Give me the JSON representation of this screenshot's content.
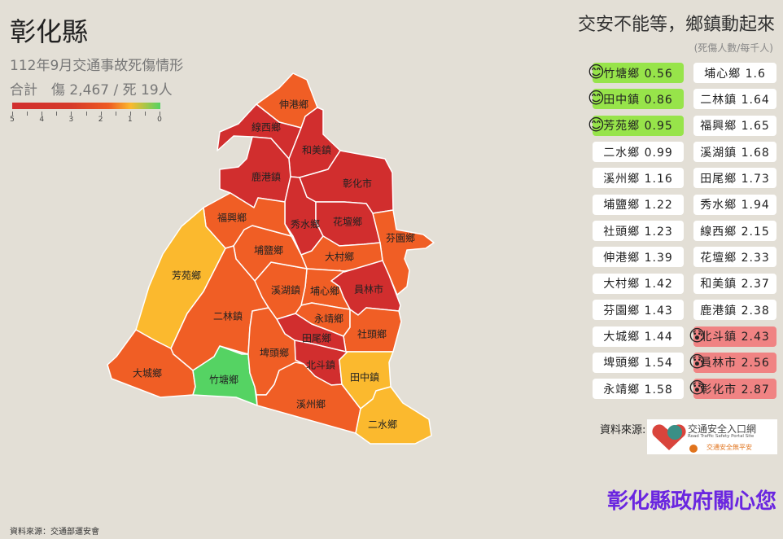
{
  "header": {
    "title": "彰化縣",
    "subtitle": "112年9月交通事故死傷情形",
    "totals": "合計　傷 2,467 / 死 19人"
  },
  "legend": {
    "labels": [
      "5",
      "4",
      "3",
      "2",
      "1",
      "0"
    ]
  },
  "colors": {
    "red": "#d12e2e",
    "orange": "#f05e25",
    "yellow": "#fbb92e",
    "green": "#55d363",
    "good_bg": "#97e44a",
    "bad_bg": "#f08383"
  },
  "map": {
    "regions": [
      {
        "id": "shengang",
        "name": "伸港鄉",
        "color": "#f05e25"
      },
      {
        "id": "xianxi",
        "name": "線西鄉",
        "color": "#d12e2e"
      },
      {
        "id": "hemei",
        "name": "和美鎮",
        "color": "#d12e2e"
      },
      {
        "id": "lukang",
        "name": "鹿港鎮",
        "color": "#d12e2e"
      },
      {
        "id": "changhua",
        "name": "彰化市",
        "color": "#d12e2e"
      },
      {
        "id": "xiushui",
        "name": "秀水鄉",
        "color": "#d12e2e"
      },
      {
        "id": "huatan",
        "name": "花壇鄉",
        "color": "#d12e2e"
      },
      {
        "id": "fenyuan",
        "name": "芬園鄉",
        "color": "#f05e25"
      },
      {
        "id": "dacun",
        "name": "大村鄉",
        "color": "#f05e25"
      },
      {
        "id": "yuanlin",
        "name": "員林市",
        "color": "#d12e2e"
      },
      {
        "id": "puxin",
        "name": "埔心鄉",
        "color": "#f05e25"
      },
      {
        "id": "yongjing",
        "name": "永靖鄉",
        "color": "#f05e25"
      },
      {
        "id": "shetou",
        "name": "社頭鄉",
        "color": "#f05e25"
      },
      {
        "id": "tianwei",
        "name": "田尾鄉",
        "color": "#d12e2e"
      },
      {
        "id": "beidou",
        "name": "北斗鎮",
        "color": "#d12e2e"
      },
      {
        "id": "xihu",
        "name": "溪湖鎮",
        "color": "#f05e25"
      },
      {
        "id": "puyan",
        "name": "埔鹽鄉",
        "color": "#f05e25"
      },
      {
        "id": "fuxing",
        "name": "福興鄉",
        "color": "#f05e25"
      },
      {
        "id": "fangyuan",
        "name": "芳苑鄉",
        "color": "#fbb92e"
      },
      {
        "id": "erlin",
        "name": "二林鎮",
        "color": "#f05e25"
      },
      {
        "id": "dacheng",
        "name": "大城鄉",
        "color": "#f05e25"
      },
      {
        "id": "zhutang",
        "name": "竹塘鄉",
        "color": "#55d363"
      },
      {
        "id": "pitou",
        "name": "埤頭鄉",
        "color": "#f05e25"
      },
      {
        "id": "xizhou",
        "name": "溪州鄉",
        "color": "#f05e25"
      },
      {
        "id": "tianzhong",
        "name": "田中鎮",
        "color": "#fbb92e"
      },
      {
        "id": "ershui",
        "name": "二水鄉",
        "color": "#fbb92e"
      }
    ]
  },
  "ranking": {
    "title": "交安不能等，鄉鎮動起來",
    "unit": "(死傷人數/每千人)",
    "left": [
      {
        "label": "竹塘鄉 0.56",
        "status": "good",
        "emoji": "😊"
      },
      {
        "label": "田中鎮 0.86",
        "status": "good",
        "emoji": "😊"
      },
      {
        "label": "芳苑鄉 0.95",
        "status": "good",
        "emoji": "😊"
      },
      {
        "label": "二水鄉 0.99"
      },
      {
        "label": "溪州鄉 1.16"
      },
      {
        "label": "埔鹽鄉 1.22"
      },
      {
        "label": "社頭鄉 1.23"
      },
      {
        "label": "伸港鄉 1.39"
      },
      {
        "label": "大村鄉 1.42"
      },
      {
        "label": "芬園鄉 1.43"
      },
      {
        "label": "大城鄉 1.44"
      },
      {
        "label": "埤頭鄉 1.54"
      },
      {
        "label": "永靖鄉 1.58"
      }
    ],
    "right": [
      {
        "label": "埔心鄉 1.6"
      },
      {
        "label": "二林鎮 1.64"
      },
      {
        "label": "福興鄉 1.65"
      },
      {
        "label": "溪湖鎮 1.68"
      },
      {
        "label": "田尾鄉 1.73"
      },
      {
        "label": "秀水鄉 1.94"
      },
      {
        "label": "線西鄉 2.15"
      },
      {
        "label": "花壇鄉 2.33"
      },
      {
        "label": "和美鎮 2.37"
      },
      {
        "label": "鹿港鎮 2.38"
      },
      {
        "label": "北斗鎮 2.43",
        "status": "bad",
        "emoji": "😰"
      },
      {
        "label": "員林市 2.56",
        "status": "bad",
        "emoji": "😰"
      },
      {
        "label": "彰化市 2.87",
        "status": "bad",
        "emoji": "😰"
      }
    ]
  },
  "source": {
    "label": "資料來源:",
    "logo_title": "交通安全入口網",
    "logo_subtitle": "Road Traffic Safety Portal Site",
    "logo_tagline": "交通安全無平安"
  },
  "slogan": "彰化縣政府關心您",
  "footer": "資料來源：交通部運安會"
}
